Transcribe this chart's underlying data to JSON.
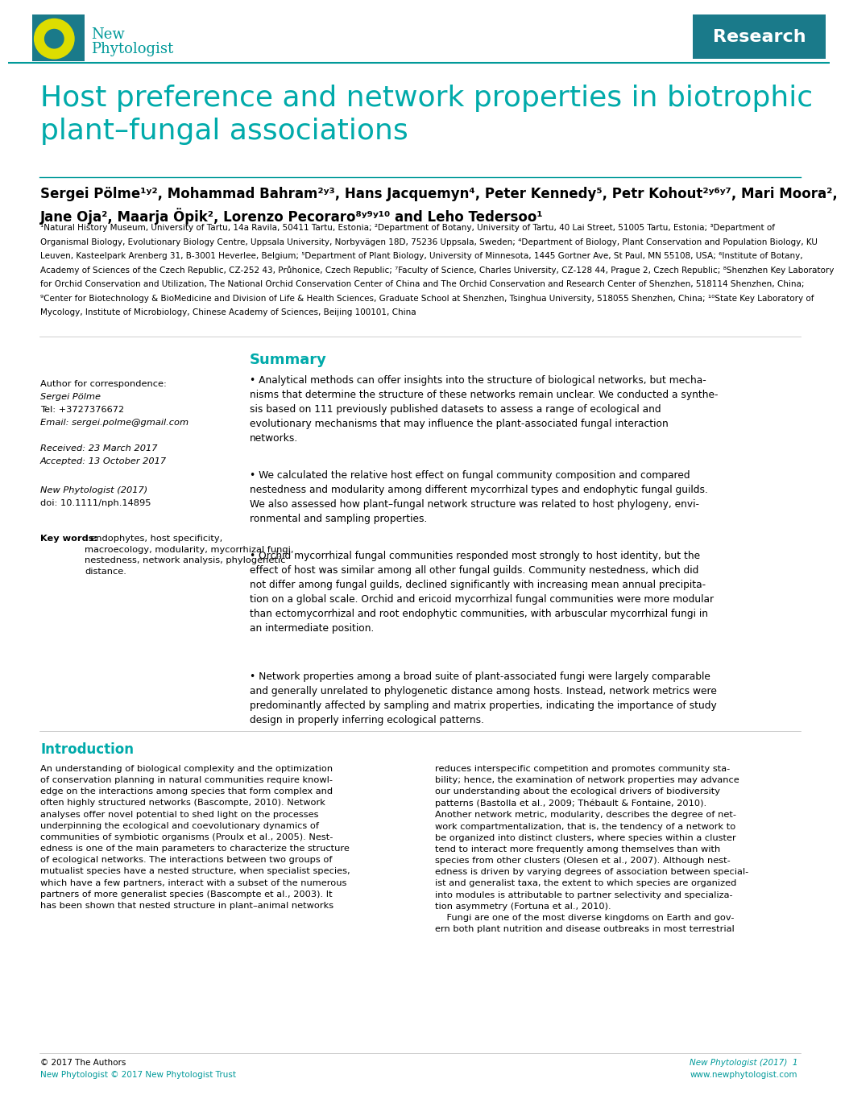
{
  "background_color": "#ffffff",
  "teal_color": "#009999",
  "research_bg": "#1A7A7A",
  "title": "Host preference and network properties in biotrophic\nplant–fungal associations",
  "title_color": "#00AAAA",
  "title_fontsize": 26,
  "research_label": "Research",
  "logo_new": "New",
  "logo_phyt": "Phytologist",
  "logo_color": "#00AAAA",
  "authors_line1": "Sergei Pölme¹ʸ², Mohammad Bahram²ʸ³, Hans Jacquemyn⁴, Peter Kennedy⁵, Petr Kohout²ʸ⁶ʸ⁷, Mari Moora²,",
  "authors_line2": "Jane Oja², Maarja Öpik², Lorenzo Pecoraro⁸ʸ⁹ʸ¹⁰ and Leho Tedersoo¹",
  "affil1": "¹Natural History Museum, University of Tartu, 14a Ravila, 50411 Tartu, Estonia; ²Department of Botany, University of Tartu, 40 Lai Street, 51005 Tartu, Estonia; ³Department of",
  "affil2": "Organismal Biology, Evolutionary Biology Centre, Uppsala University, Norbyvägen 18D, 75236 Uppsala, Sweden; ⁴Department of Biology, Plant Conservation and Population Biology, KU",
  "affil3": "Leuven, Kasteelpark Arenberg 31, B-3001 Heverlee, Belgium; ⁵Department of Plant Biology, University of Minnesota, 1445 Gortner Ave, St Paul, MN 55108, USA; ⁶Institute of Botany,",
  "affil4": "Academy of Sciences of the Czech Republic, CZ-252 43, Průhonice, Czech Republic; ⁷Faculty of Science, Charles University, CZ-128 44, Prague 2, Czech Republic; ⁸Shenzhen Key Laboratory",
  "affil5": "for Orchid Conservation and Utilization, The National Orchid Conservation Center of China and The Orchid Conservation and Research Center of Shenzhen, 518114 Shenzhen, China;",
  "affil6": "⁹Center for Biotechnology & BioMedicine and Division of Life & Health Sciences, Graduate School at Shenzhen, Tsinghua University, 518055 Shenzhen, China; ¹⁰State Key Laboratory of",
  "affil7": "Mycology, Institute of Microbiology, Chinese Academy of Sciences, Beijing 100101, China",
  "summary_title": "Summary",
  "summary_color": "#00AAAA",
  "bullet1": "• Analytical methods can offer insights into the structure of biological networks, but mecha-\nnisms that determine the structure of these networks remain unclear. We conducted a synthe-\nsis based on 111 previously published datasets to assess a range of ecological and\nevolutionary mechanisms that may influence the plant-associated fungal interaction\nnetworks.",
  "bullet2": "• We calculated the relative host effect on fungal community composition and compared\nnestedness and modularity among different mycorrhizal types and endophytic fungal guilds.\nWe also assessed how plant–fungal network structure was related to host phylogeny, envi-\nronmental and sampling properties.",
  "bullet3": "• Orchid mycorrhizal fungal communities responded most strongly to host identity, but the\neffect of host was similar among all other fungal guilds. Community nestedness, which did\nnot differ among fungal guilds, declined significantly with increasing mean annual precipita-\ntion on a global scale. Orchid and ericoid mycorrhizal fungal communities were more modular\nthan ectomycorrhizal and root endophytic communities, with arbuscular mycorrhizal fungi in\nan intermediate position.",
  "bullet4": "• Network properties among a broad suite of plant-associated fungi were largely comparable\nand generally unrelated to phylogenetic distance among hosts. Instead, network metrics were\npredominantly affected by sampling and matrix properties, indicating the importance of study\ndesign in properly inferring ecological patterns.",
  "left_label1": "Author for correspondence:",
  "left_name": "Sergei Pölme",
  "left_tel": "Tel: +3727376672",
  "left_email": "Email: sergei.polme@gmail.com",
  "left_received": "Received: 23 March 2017",
  "left_accepted": "Accepted: 13 October 2017",
  "left_journal": "New Phytologist (2017)",
  "left_doi": "doi: 10.1111/nph.14895",
  "left_kw_bold": "Key words:",
  "left_kw_rest": "  endophytes, host specificity,\nmacroecology, modularity, mycorrhizal fungi,\nnestedness, network analysis, phylogenetic\ndistance.",
  "intro_title": "Introduction",
  "intro_color": "#00AAAA",
  "intro_col1": "An understanding of biological complexity and the optimization\nof conservation planning in natural communities require knowl-\nedge on the interactions among species that form complex and\noften highly structured networks (Bascompte, 2010). Network\nanalyses offer novel potential to shed light on the processes\nunderpinning the ecological and coevolutionary dynamics of\ncommunities of symbiotic organisms (Proulx et al., 2005). Nest-\nedness is one of the main parameters to characterize the structure\nof ecological networks. The interactions between two groups of\nmutualist species have a nested structure, when specialist species,\nwhich have a few partners, interact with a subset of the numerous\npartners of more generalist species (Bascompte et al., 2003). It\nhas been shown that nested structure in plant–animal networks",
  "intro_col2": "reduces interspecific competition and promotes community sta-\nbility; hence, the examination of network properties may advance\nour understanding about the ecological drivers of biodiversity\npatterns (Bastolla et al., 2009; Thébault & Fontaine, 2010).\nAnother network metric, modularity, describes the degree of net-\nwork compartmentalization, that is, the tendency of a network to\nbe organized into distinct clusters, where species within a cluster\ntend to interact more frequently among themselves than with\nspecies from other clusters (Olesen et al., 2007). Although nest-\nedness is driven by varying degrees of association between special-\nist and generalist taxa, the extent to which species are organized\ninto modules is attributable to partner selectivity and specializa-\ntion asymmetry (Fortuna et al., 2010).\n    Fungi are one of the most diverse kingdoms on Earth and gov-\nern both plant nutrition and disease outbreaks in most terrestrial",
  "footer_left1": "© 2017 The Authors",
  "footer_left2": "New Phytologist © 2017 New Phytologist Trust",
  "footer_right1": "New Phytologist (2017)",
  "footer_right2": "www.newphytologist.com",
  "footer_page": "1"
}
